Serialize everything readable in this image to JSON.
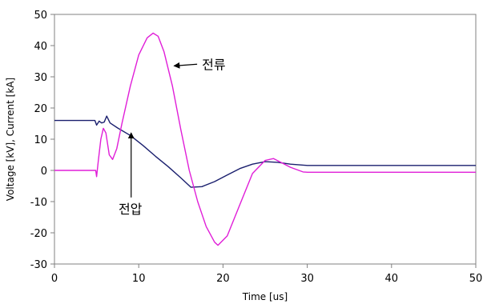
{
  "chart_data": {
    "type": "line",
    "xlabel": "Time [us]",
    "ylabel": "Voltage [kV], Current [kA]",
    "xlim": [
      0,
      50
    ],
    "ylim": [
      -30,
      50
    ],
    "x_ticks": [
      0,
      10,
      20,
      30,
      40,
      50
    ],
    "y_ticks": [
      -30,
      -20,
      -10,
      0,
      10,
      20,
      30,
      40,
      50
    ],
    "grid": false,
    "legend": "none",
    "series": [
      {
        "name": "전압",
        "color": "#1a1f6e",
        "x": [
          0,
          4.8,
          5.0,
          5.3,
          5.6,
          5.9,
          6.2,
          6.6,
          7.5,
          9,
          10.5,
          12,
          13.5,
          15,
          16.2,
          17.5,
          19,
          20.5,
          22,
          23.5,
          25,
          26.5,
          28,
          30,
          35,
          40,
          45,
          50
        ],
        "y": [
          16,
          16,
          14.5,
          15.8,
          15.2,
          15.5,
          17.4,
          15.2,
          13.6,
          11.2,
          8.0,
          4.5,
          1.2,
          -2.4,
          -5.4,
          -5.2,
          -3.6,
          -1.5,
          0.6,
          2.0,
          2.8,
          2.6,
          2.0,
          1.6,
          1.6,
          1.6,
          1.6,
          1.6
        ]
      },
      {
        "name": "전류",
        "color": "#e01ed8",
        "x": [
          0,
          4.9,
          5.0,
          5.2,
          5.5,
          5.8,
          6.1,
          6.5,
          6.9,
          7.4,
          8,
          9,
          10,
          11,
          11.7,
          12.3,
          13,
          14,
          15,
          16,
          17,
          18,
          19,
          19.4,
          20.5,
          22,
          23.5,
          25,
          26,
          27,
          28,
          29.5,
          30,
          35,
          40,
          45,
          50
        ],
        "y": [
          0,
          0,
          -2,
          3,
          10,
          13.5,
          12,
          5,
          3.5,
          7,
          15,
          27,
          37,
          42.5,
          44,
          43,
          38,
          27,
          13,
          0,
          -10,
          -18,
          -23,
          -24,
          -21,
          -11,
          -1,
          3.2,
          3.8,
          2.4,
          1,
          -0.5,
          -0.6,
          -0.6,
          -0.6,
          -0.6,
          -0.6
        ]
      }
    ],
    "annotations": [
      {
        "text": "전류",
        "x": 17.5,
        "y": 32.5,
        "arrow_to": [
          14.2,
          33.5
        ]
      },
      {
        "text": "전압",
        "x": 7.6,
        "y": -13.8,
        "arrow_to": [
          9.1,
          12.0
        ]
      }
    ]
  }
}
